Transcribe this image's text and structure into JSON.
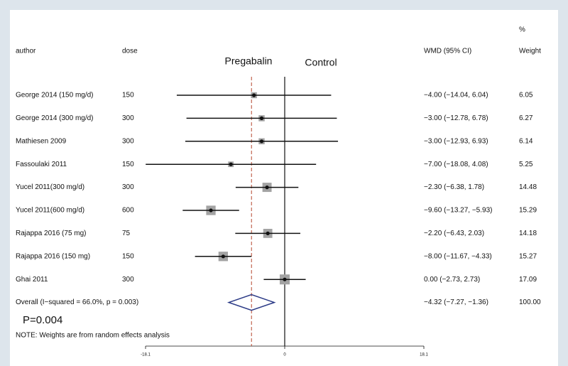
{
  "chart_data": {
    "type": "forest",
    "headers": {
      "author": "author",
      "dose": "dose",
      "ci": "WMD (95% CI)",
      "weight_unit": "%",
      "weight": "Weight"
    },
    "left_label": "Pregabalin",
    "right_label": "Control",
    "studies": [
      {
        "author": "George 2014 (150 mg/d)",
        "dose": 150,
        "estimate": -4.0,
        "lower": -14.04,
        "upper": 6.04,
        "ci_label": "−4.00 (−14.04, 6.04)",
        "weight": 6.05,
        "weight_label": "6.05"
      },
      {
        "author": "George 2014 (300 mg/d)",
        "dose": 300,
        "estimate": -3.0,
        "lower": -12.78,
        "upper": 6.78,
        "ci_label": "−3.00 (−12.78, 6.78)",
        "weight": 6.27,
        "weight_label": "6.27"
      },
      {
        "author": "Mathiesen 2009",
        "dose": 300,
        "estimate": -3.0,
        "lower": -12.93,
        "upper": 6.93,
        "ci_label": "−3.00 (−12.93, 6.93)",
        "weight": 6.14,
        "weight_label": "6.14"
      },
      {
        "author": "Fassoulaki 2011",
        "dose": 150,
        "estimate": -7.0,
        "lower": -18.08,
        "upper": 4.08,
        "ci_label": "−7.00 (−18.08, 4.08)",
        "weight": 5.25,
        "weight_label": "5.25"
      },
      {
        "author": "Yucel 2011(300 mg/d)",
        "dose": 300,
        "estimate": -2.3,
        "lower": -6.38,
        "upper": 1.78,
        "ci_label": "−2.30 (−6.38, 1.78)",
        "weight": 14.48,
        "weight_label": "14.48"
      },
      {
        "author": "Yucel 2011(600 mg/d)",
        "dose": 600,
        "estimate": -9.6,
        "lower": -13.27,
        "upper": -5.93,
        "ci_label": "−9.60 (−13.27, −5.93)",
        "weight": 15.29,
        "weight_label": "15.29"
      },
      {
        "author": "Rajappa 2016 (75 mg)",
        "dose": 75,
        "estimate": -2.2,
        "lower": -6.43,
        "upper": 2.03,
        "ci_label": "−2.20 (−6.43, 2.03)",
        "weight": 14.18,
        "weight_label": "14.18"
      },
      {
        "author": "Rajappa 2016 (150 mg)",
        "dose": 150,
        "estimate": -8.0,
        "lower": -11.67,
        "upper": -4.33,
        "ci_label": "−8.00 (−11.67, −4.33)",
        "weight": 15.27,
        "weight_label": "15.27"
      },
      {
        "author": "Ghai 2011",
        "dose": 300,
        "estimate": 0.0,
        "lower": -2.73,
        "upper": 2.73,
        "ci_label": "0.00 (−2.73, 2.73)",
        "weight": 17.09,
        "weight_label": "17.09"
      }
    ],
    "overall": {
      "author": "Overall  (I−squared = 66.0%, p = 0.003)",
      "estimate": -4.32,
      "lower": -7.27,
      "upper": -1.36,
      "ci_label": "−4.32 (−7.27, −1.36)",
      "weight": 100,
      "weight_label": "100.00"
    },
    "p_value": "P=0.004",
    "note": "NOTE: Weights are from random effects analysis",
    "xlim": [
      -18.1,
      18.1
    ],
    "xticks": [
      -18.1,
      0,
      18.1
    ],
    "colors": {
      "ci": "#111111",
      "square": "#a3a3a3",
      "diamond": "#2b3a86",
      "overall_line": "#b5472e"
    }
  }
}
